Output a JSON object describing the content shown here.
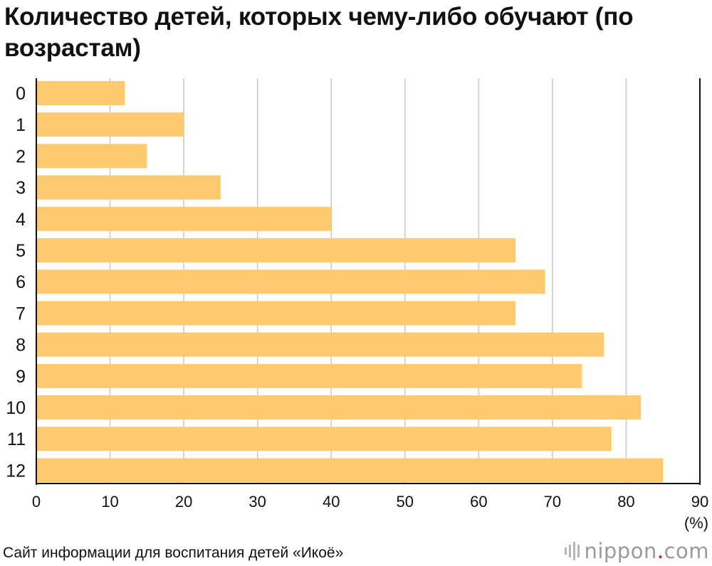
{
  "chart_data": {
    "type": "bar",
    "orientation": "horizontal",
    "title": "Количество детей, которых чему-либо обучают (по возрастам)",
    "categories": [
      "0",
      "1",
      "2",
      "3",
      "4",
      "5",
      "6",
      "7",
      "8",
      "9",
      "10",
      "11",
      "12"
    ],
    "values": [
      12,
      20,
      15,
      25,
      40,
      65,
      69,
      65,
      77,
      74,
      82,
      78,
      85
    ],
    "xlim": [
      0,
      90
    ],
    "xticks": [
      0,
      10,
      20,
      30,
      40,
      50,
      60,
      70,
      80,
      90
    ],
    "unit_label": "(%)",
    "grid": true,
    "colors": {
      "bar": "#fdca6f",
      "grid": "#c8c8c8",
      "axis": "#111111"
    }
  },
  "footer": {
    "source": "Сайт информации для воспитания детей «Икоё»",
    "logo_main": "nippon",
    "logo_dot": ".",
    "logo_tld": "com"
  }
}
